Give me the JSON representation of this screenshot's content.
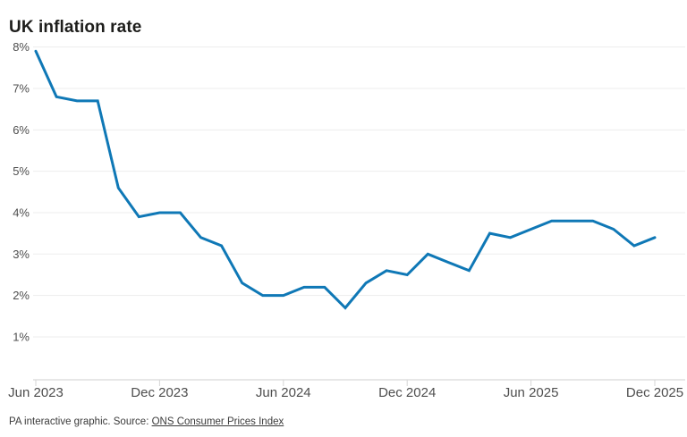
{
  "title": "UK inflation rate",
  "footer": {
    "prefix": "PA interactive graphic. Source: ",
    "link_label": "ONS Consumer Prices Index"
  },
  "colors": {
    "background": "#ffffff",
    "line": "#0f78b6",
    "grid": "#ededed",
    "axis": "#cfcfcf",
    "tick": "#d6d6d6",
    "axis_label": "#4e4e4e",
    "title": "#1d1d1b",
    "footer": "#3b3b3b"
  },
  "chart_data": {
    "type": "line",
    "title": "UK inflation rate",
    "xlabel": "",
    "ylabel": "",
    "x": [
      "Jun 2023",
      "Jul 2023",
      "Aug 2023",
      "Sep 2023",
      "Oct 2023",
      "Nov 2023",
      "Dec 2023",
      "Jan 2024",
      "Feb 2024",
      "Mar 2024",
      "Apr 2024",
      "May 2024",
      "Jun 2024",
      "Jul 2024",
      "Aug 2024",
      "Sep 2024",
      "Oct 2024",
      "Nov 2024",
      "Dec 2024",
      "Jan 2025",
      "Feb 2025",
      "Mar 2025",
      "Apr 2025",
      "May 2025",
      "Jun 2025",
      "Jul 2025",
      "Aug 2025",
      "Sep 2025",
      "Oct 2025",
      "Nov 2025",
      "Dec 2025"
    ],
    "values": [
      7.9,
      6.8,
      6.7,
      6.7,
      4.6,
      3.9,
      4.0,
      4.0,
      3.4,
      3.2,
      2.3,
      2.0,
      2.0,
      2.2,
      2.2,
      1.7,
      2.3,
      2.6,
      2.5,
      3.0,
      2.8,
      2.6,
      3.5,
      3.4,
      3.6,
      3.8,
      3.8,
      3.8,
      3.6,
      3.2,
      3.4
    ],
    "y_tick_labels": [
      "8%",
      "7%",
      "6%",
      "5%",
      "4%",
      "3%",
      "2%",
      "1%"
    ],
    "y_tick_values": [
      8,
      7,
      6,
      5,
      4,
      3,
      2,
      1
    ],
    "x_tick_labels": [
      "Jun 2023",
      "Dec 2023",
      "Jun 2024",
      "Dec 2024",
      "Jun 2025",
      "Dec 2025"
    ],
    "x_tick_indices": [
      0,
      6,
      12,
      18,
      24,
      30
    ],
    "ylim": [
      0,
      8.2
    ],
    "grid": "horizontal",
    "legend": "none"
  }
}
